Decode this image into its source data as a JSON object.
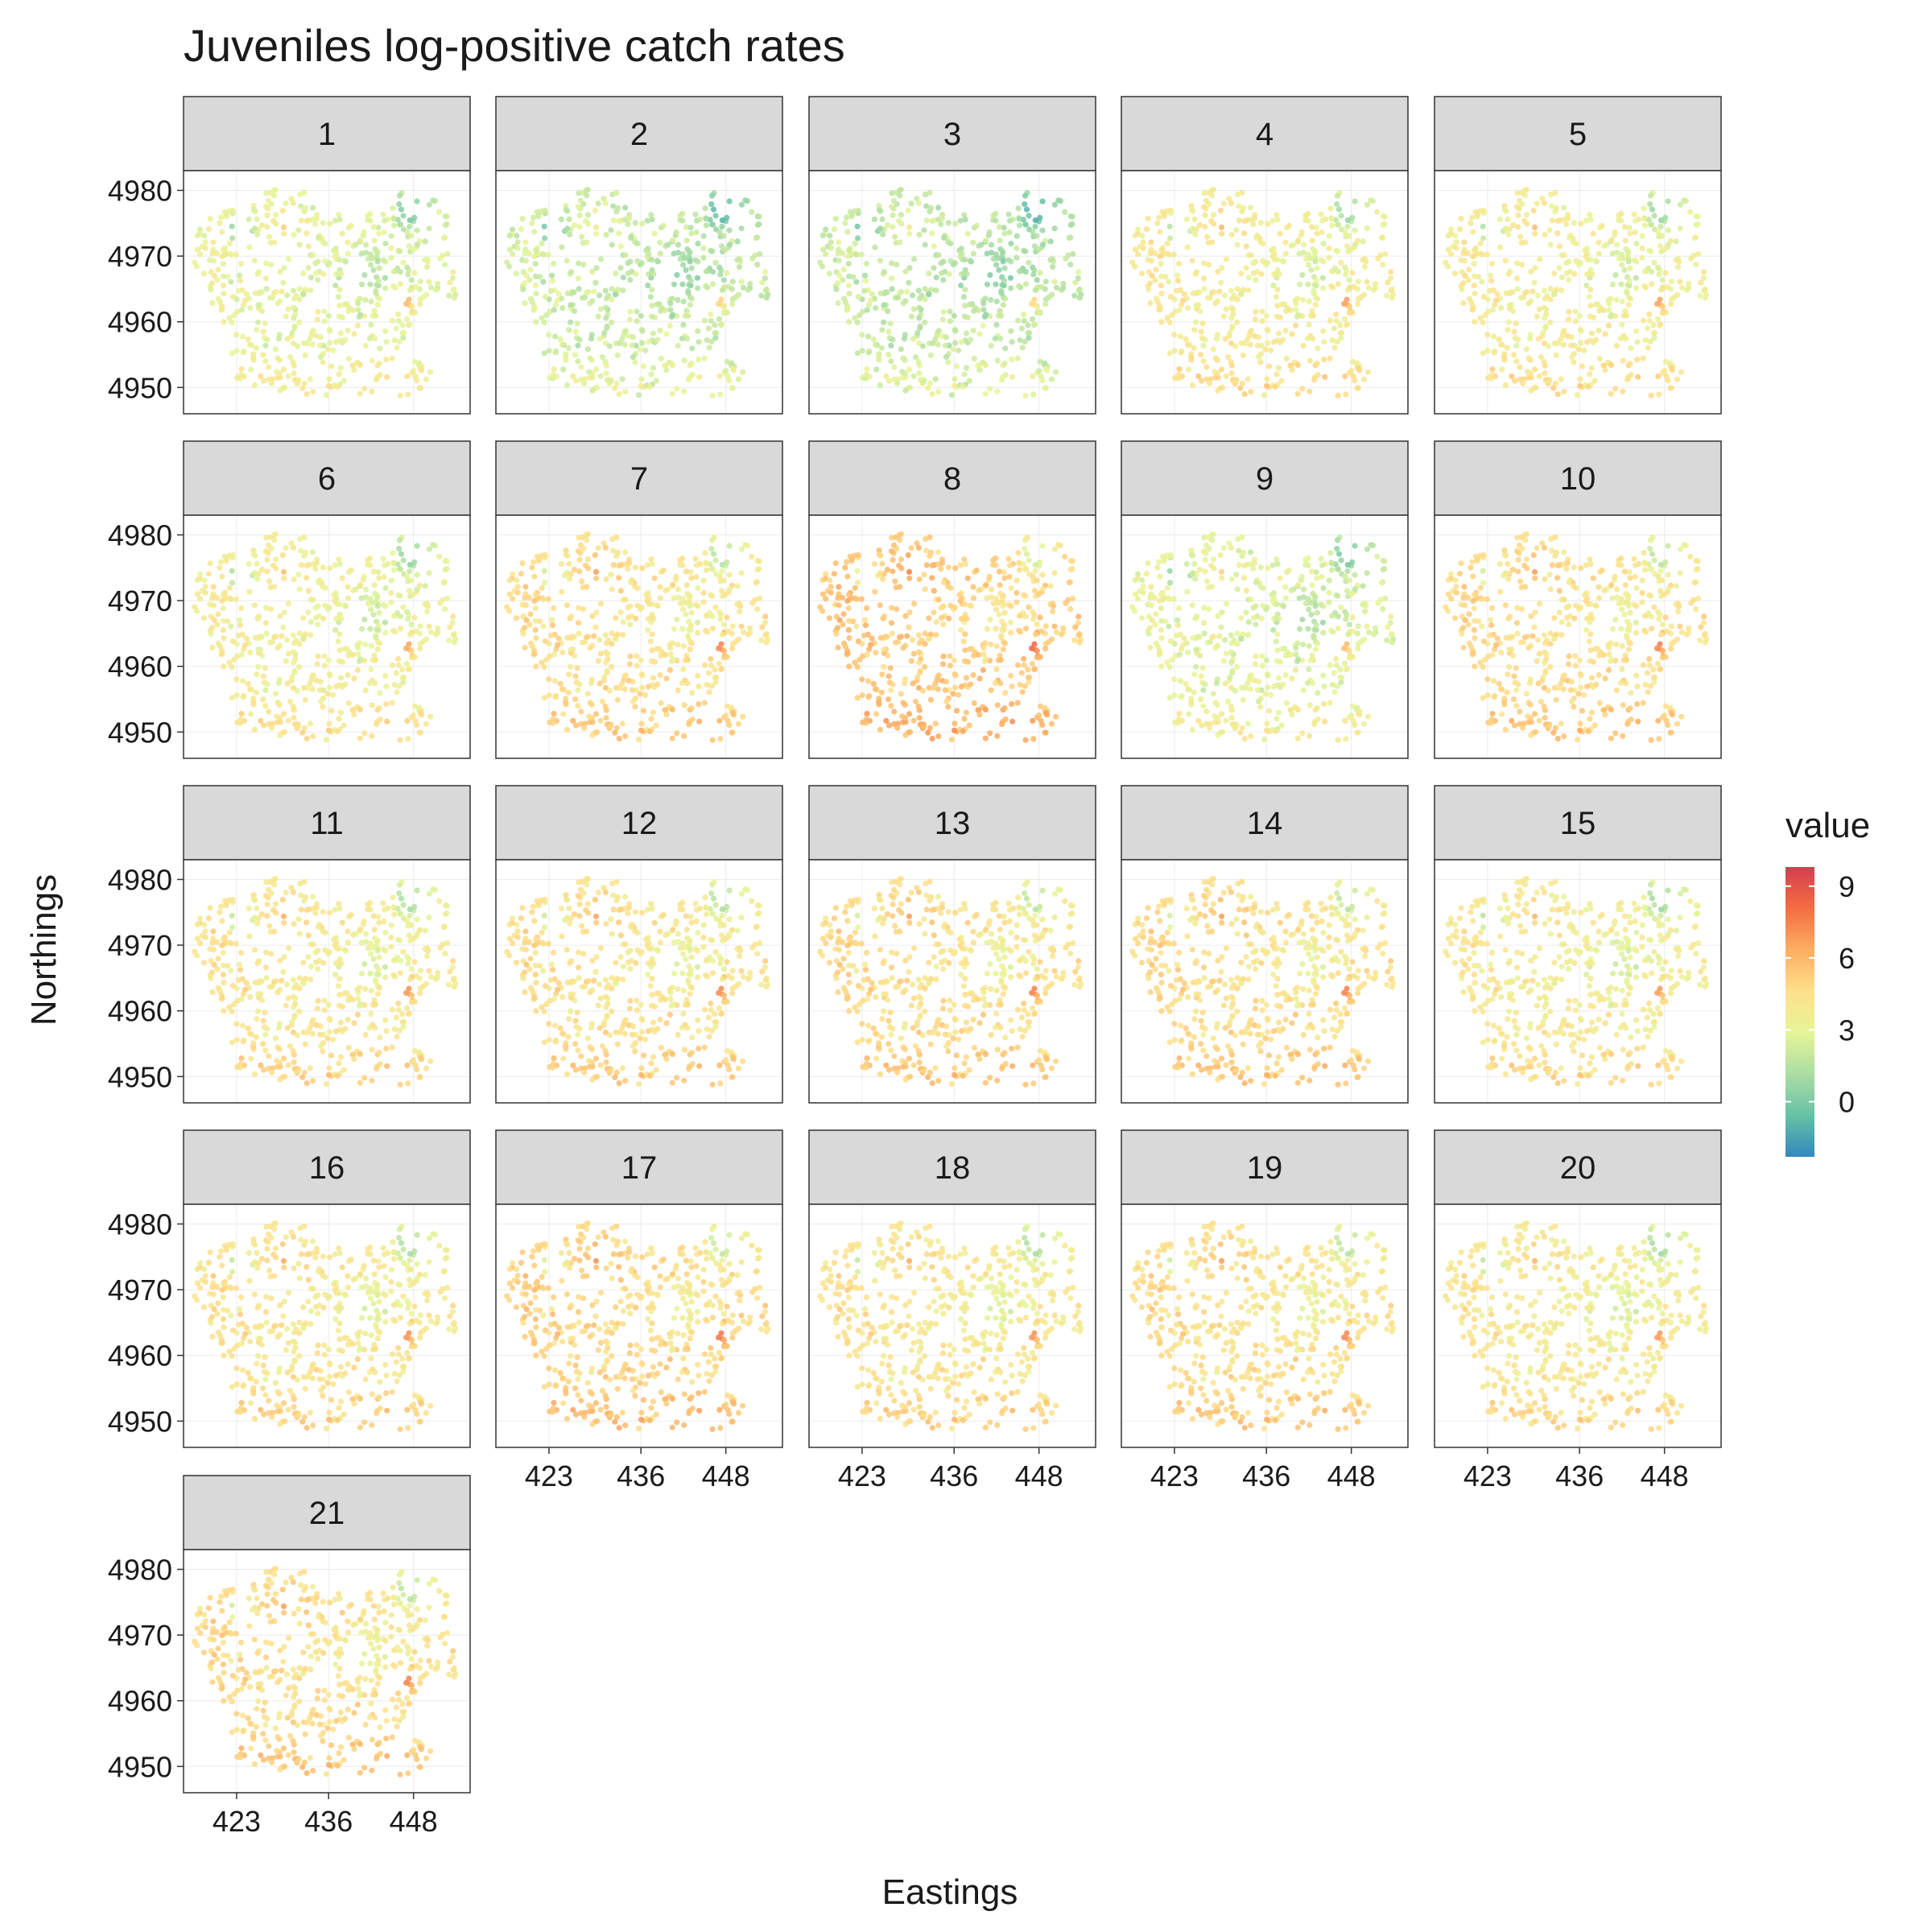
{
  "chart_data": {
    "type": "scatter",
    "title": "Juveniles log-positive catch rates",
    "xlabel": "Eastings",
    "ylabel": "Northings",
    "panels": [
      "1",
      "2",
      "3",
      "4",
      "5",
      "6",
      "7",
      "8",
      "9",
      "10",
      "11",
      "12",
      "13",
      "14",
      "15",
      "16",
      "17",
      "18",
      "19",
      "20",
      "21"
    ],
    "panel_mean_value": [
      2.9,
      2.0,
      1.8,
      3.7,
      3.6,
      3.5,
      4.4,
      5.3,
      2.8,
      4.5,
      4.0,
      4.3,
      4.5,
      4.5,
      3.8,
      4.1,
      4.8,
      4.1,
      4.4,
      3.9,
      4.5
    ],
    "x_ticks": [
      423,
      436,
      448
    ],
    "x_tick_labels": [
      "423",
      "436",
      "448"
    ],
    "y_ticks": [
      4950,
      4960,
      4970,
      4980
    ],
    "y_tick_labels": [
      "4950",
      "4960",
      "4970",
      "4980"
    ],
    "xlim": [
      415.5,
      456
    ],
    "ylim": [
      4946,
      4983
    ],
    "legend": {
      "title": "value",
      "position": "right",
      "breaks": [
        0,
        3,
        6,
        9
      ],
      "labels": [
        "0",
        "3",
        "6",
        "9"
      ],
      "range": [
        -2.3,
        9.8
      ],
      "colors": [
        "#3288BD",
        "#66C2A5",
        "#ABDDA4",
        "#E6F598",
        "#FEE08B",
        "#FDAE61",
        "#F46D43",
        "#D53E4F"
      ]
    },
    "grid": true,
    "theme": "bw"
  }
}
